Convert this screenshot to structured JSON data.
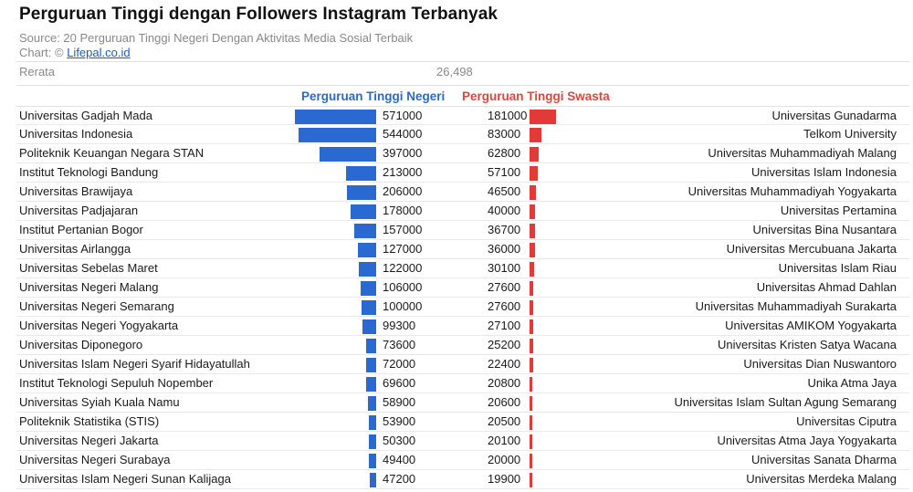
{
  "title": "Perguruan Tinggi dengan Followers Instagram Terbanyak",
  "source_prefix": "Source: ",
  "source_text": "20 Perguruan Tinggi Negeri Dengan Aktivitas Media Sosial Terbaik",
  "credit_prefix": "Chart: © ",
  "credit_link": "Lifepal.co.id",
  "average_label": "Rerata",
  "average_value": "26,498",
  "colors": {
    "negeri": "#2a69d1",
    "swasta": "#e33a37"
  },
  "chart_data": {
    "type": "bar",
    "layout": "butterfly",
    "title": "Perguruan Tinggi dengan Followers Instagram Terbanyak",
    "series": [
      {
        "name": "Perguruan Tinggi Negeri",
        "categories": [
          "Universitas Gadjah Mada",
          "Universitas Indonesia",
          "Politeknik Keuangan Negara STAN",
          "Institut Teknologi Bandung",
          "Universitas Brawijaya",
          "Universitas Padjajaran",
          "Institut Pertanian Bogor",
          "Universitas Airlangga",
          "Universitas Sebelas Maret",
          "Universitas Negeri Malang",
          "Universitas Negeri Semarang",
          "Universitas Negeri Yogyakarta",
          "Universitas Diponegoro",
          "Universitas Islam Negeri Syarif Hidayatullah",
          "Institut Teknologi Sepuluh Nopember",
          "Universitas Syiah Kuala Namu",
          "Politeknik Statistika (STIS)",
          "Universitas Negeri Jakarta",
          "Universitas Negeri Surabaya",
          "Universitas Islam Negeri Sunan Kalijaga"
        ],
        "values": [
          571000,
          544000,
          397000,
          213000,
          206000,
          178000,
          157000,
          127000,
          122000,
          106000,
          100000,
          99300,
          73600,
          72000,
          69600,
          58900,
          53900,
          50300,
          49400,
          47200
        ]
      },
      {
        "name": "Perguruan Tinggi Swasta",
        "categories": [
          "Universitas Gunadarma",
          "Telkom University",
          "Universitas Muhammadiyah Malang",
          "Universitas Islam Indonesia",
          "Universitas Muhammadiyah Yogyakarta",
          "Universitas Pertamina",
          "Universitas Bina Nusantara",
          "Universitas Mercubuana Jakarta",
          "Universitas Islam Riau",
          "Universitas Ahmad Dahlan",
          "Universitas Muhammadiyah Surakarta",
          "Universitas AMIKOM Yogyakarta",
          "Universitas Kristen Satya Wacana",
          "Universitas Dian Nuswantoro",
          "Unika Atma Jaya",
          "Universitas Islam Sultan Agung Semarang",
          "Universitas Ciputra",
          "Universitas Atma Jaya Yogyakarta",
          "Universitas Sanata Dharma",
          "Universitas Merdeka Malang"
        ],
        "values": [
          181000,
          83000,
          62800,
          57100,
          46500,
          40000,
          36700,
          36000,
          30100,
          27600,
          27600,
          27100,
          25200,
          22400,
          20800,
          20600,
          20500,
          20100,
          20000,
          19900
        ]
      }
    ]
  }
}
